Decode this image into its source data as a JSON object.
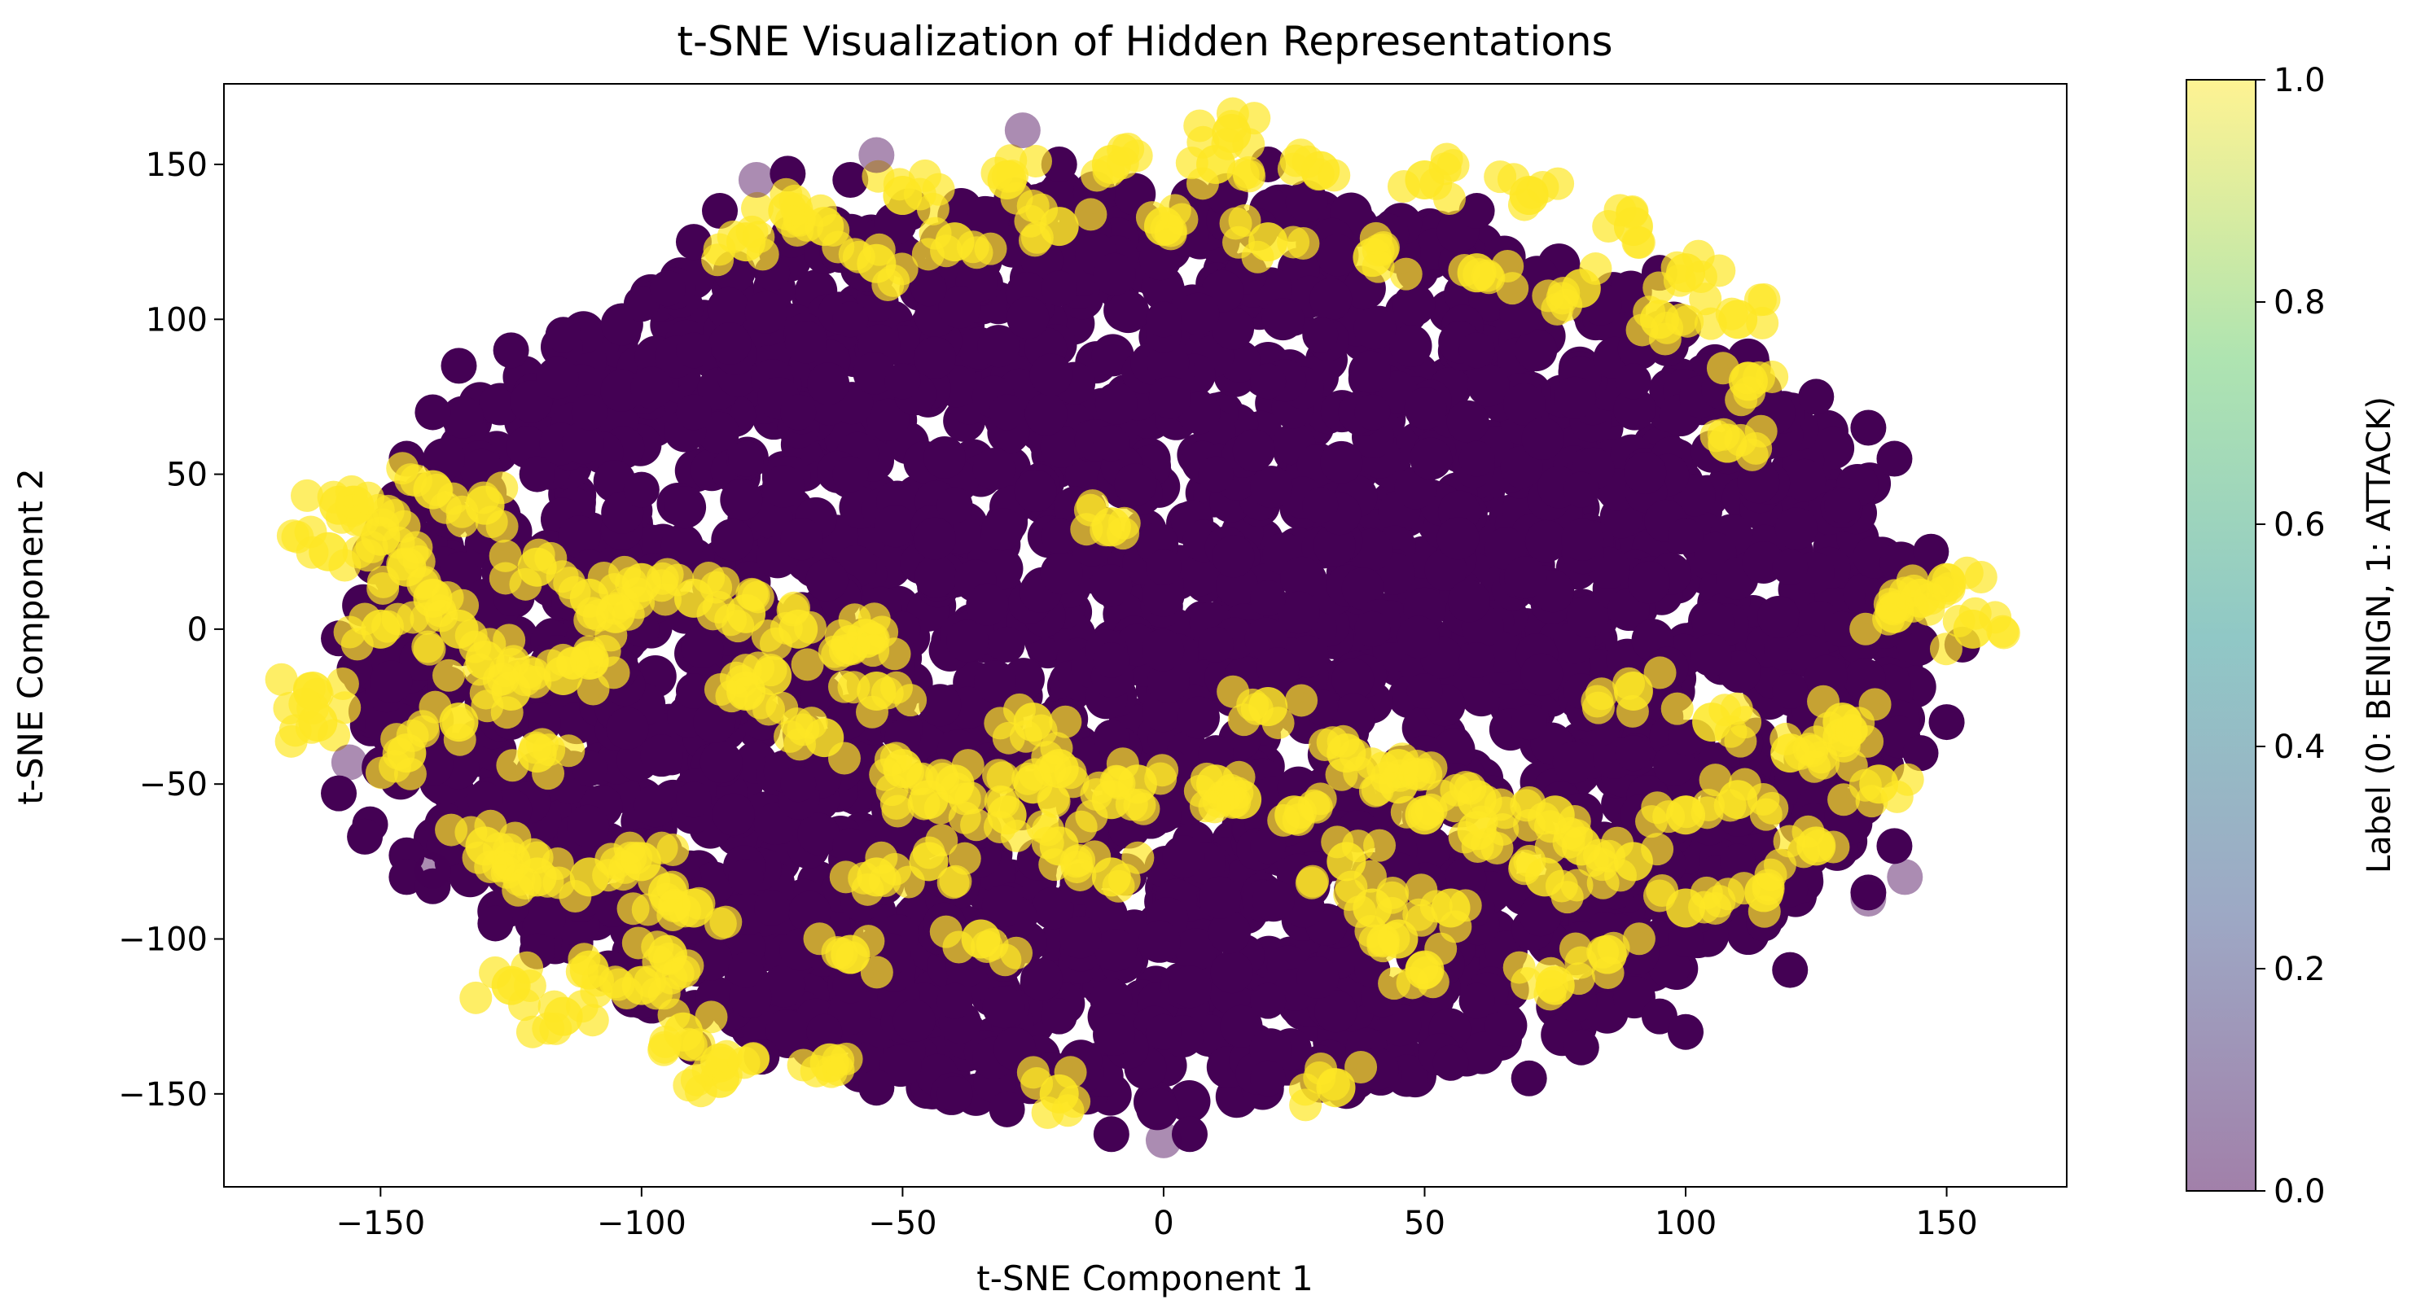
{
  "chart_data": {
    "type": "scatter",
    "title": "t-SNE Visualization of Hidden Representations",
    "xlabel": "t-SNE Component 1",
    "ylabel": "t-SNE Component 2",
    "xlim": [
      -180,
      173
    ],
    "ylim": [
      -180,
      176
    ],
    "xticks": [
      -150,
      -100,
      -50,
      0,
      50,
      100,
      150
    ],
    "yticks": [
      -150,
      -100,
      -50,
      0,
      50,
      100,
      150
    ],
    "xtick_labels": [
      "−150",
      "−100",
      "−50",
      "0",
      "50",
      "100",
      "150"
    ],
    "ytick_labels": [
      "−150",
      "−100",
      "−50",
      "0",
      "50",
      "100",
      "150"
    ],
    "grid": false,
    "legend": "none",
    "colormap": "viridis",
    "colors": {
      "benign": "#440154",
      "attack": "#fde725"
    },
    "colorbar": {
      "label": "Label (0: BENIGN, 1: ATTACK)",
      "range": [
        0.0,
        1.0
      ],
      "ticks": [
        0.0,
        0.2,
        0.4,
        0.6,
        0.8,
        1.0
      ],
      "tick_labels": [
        "0.0",
        "0.2",
        "0.4",
        "0.6",
        "0.8",
        "1.0"
      ],
      "colors": [
        "#440154",
        "#3b528b",
        "#21918c",
        "#5ec962",
        "#fde725"
      ]
    },
    "series": [
      {
        "label": 0,
        "color": "#440154",
        "points": [
          [
            -158,
            -3
          ],
          [
            -155,
            -13
          ],
          [
            -158,
            -53
          ],
          [
            -152,
            -63
          ],
          [
            -153,
            -67
          ],
          [
            -145,
            -73
          ],
          [
            -145,
            -80
          ],
          [
            -140,
            -83
          ],
          [
            -128,
            -95
          ],
          [
            -120,
            -104
          ],
          [
            -100,
            -120
          ],
          [
            -90,
            -135
          ],
          [
            -77,
            -138
          ],
          [
            -75,
            -90
          ],
          [
            -65,
            -130
          ],
          [
            -55,
            -148
          ],
          [
            -40,
            -150
          ],
          [
            -30,
            -155
          ],
          [
            -10,
            -163
          ],
          [
            5,
            -163
          ],
          [
            20,
            -145
          ],
          [
            30,
            -140
          ],
          [
            55,
            -140
          ],
          [
            70,
            -145
          ],
          [
            95,
            -125
          ],
          [
            115,
            -95
          ],
          [
            120,
            -84
          ],
          [
            135,
            -85
          ],
          [
            140,
            -70
          ],
          [
            145,
            -40
          ],
          [
            150,
            -30
          ],
          [
            153,
            -5
          ],
          [
            148,
            15
          ],
          [
            147,
            25
          ],
          [
            140,
            55
          ],
          [
            135,
            65
          ],
          [
            125,
            75
          ],
          [
            95,
            115
          ],
          [
            60,
            135
          ],
          [
            20,
            150
          ],
          [
            -20,
            150
          ],
          [
            -60,
            145
          ],
          [
            -72,
            147
          ],
          [
            -85,
            135
          ],
          [
            -90,
            125
          ],
          [
            -100,
            105
          ],
          [
            -115,
            95
          ],
          [
            -125,
            90
          ],
          [
            -135,
            85
          ],
          [
            -140,
            70
          ],
          [
            -145,
            55
          ],
          [
            -140,
            40
          ],
          [
            -90,
            90
          ],
          [
            -60,
            100
          ],
          [
            -20,
            110
          ],
          [
            0,
            95
          ],
          [
            20,
            80
          ],
          [
            40,
            70
          ],
          [
            60,
            55
          ],
          [
            80,
            45
          ],
          [
            100,
            30
          ],
          [
            120,
            20
          ],
          [
            130,
            0
          ],
          [
            120,
            -20
          ],
          [
            100,
            -35
          ],
          [
            80,
            -20
          ],
          [
            60,
            -10
          ],
          [
            40,
            0
          ],
          [
            20,
            10
          ],
          [
            0,
            20
          ],
          [
            -20,
            30
          ],
          [
            -40,
            40
          ],
          [
            -60,
            50
          ],
          [
            -80,
            55
          ],
          [
            -100,
            45
          ],
          [
            -110,
            20
          ],
          [
            -100,
            0
          ],
          [
            -90,
            -20
          ],
          [
            -70,
            -10
          ],
          [
            -50,
            0
          ],
          [
            -30,
            -5
          ],
          [
            -10,
            -10
          ],
          [
            10,
            -5
          ],
          [
            30,
            -25
          ],
          [
            50,
            -40
          ],
          [
            70,
            -60
          ],
          [
            90,
            -80
          ],
          [
            110,
            -75
          ],
          [
            130,
            -60
          ],
          [
            120,
            -110
          ],
          [
            100,
            -130
          ],
          [
            80,
            -135
          ],
          [
            60,
            -120
          ],
          [
            40,
            -110
          ],
          [
            20,
            -120
          ],
          [
            0,
            -130
          ],
          [
            -20,
            -125
          ],
          [
            -40,
            -120
          ],
          [
            -60,
            -115
          ],
          [
            -80,
            -110
          ],
          [
            -100,
            -70
          ],
          [
            -80,
            -80
          ],
          [
            -60,
            -70
          ],
          [
            -40,
            -80
          ],
          [
            -20,
            -70
          ],
          [
            0,
            -60
          ],
          [
            20,
            -70
          ],
          [
            40,
            -80
          ],
          [
            60,
            -90
          ],
          [
            80,
            -100
          ],
          [
            100,
            -100
          ],
          [
            110,
            -50
          ],
          [
            90,
            -40
          ],
          [
            70,
            -30
          ],
          [
            50,
            -20
          ],
          [
            30,
            40
          ],
          [
            10,
            50
          ],
          [
            -10,
            60
          ],
          [
            -30,
            70
          ],
          [
            -50,
            80
          ],
          [
            -70,
            70
          ],
          [
            -90,
            70
          ],
          [
            -110,
            70
          ],
          [
            -120,
            50
          ],
          [
            -130,
            30
          ],
          [
            -125,
            10
          ],
          [
            -125,
            -30
          ],
          [
            -130,
            -55
          ],
          [
            -110,
            -45
          ],
          [
            -90,
            -55
          ],
          [
            -70,
            -50
          ],
          [
            -50,
            -35
          ],
          [
            -30,
            -40
          ],
          [
            -10,
            -35
          ],
          [
            10,
            -40
          ],
          [
            30,
            -55
          ],
          [
            0,
            100
          ],
          [
            30,
            95
          ],
          [
            60,
            90
          ],
          [
            90,
            80
          ],
          [
            110,
            60
          ],
          [
            130,
            40
          ],
          [
            -45,
            110
          ],
          [
            -75,
            115
          ],
          [
            -95,
            110
          ]
        ]
      },
      {
        "label": 1,
        "color": "#fde725",
        "points": [
          [
            -72,
            135
          ],
          [
            -65,
            130
          ],
          [
            -50,
            140
          ],
          [
            -30,
            145
          ],
          [
            -10,
            150
          ],
          [
            10,
            150
          ],
          [
            30,
            148
          ],
          [
            50,
            145
          ],
          [
            70,
            140
          ],
          [
            90,
            130
          ],
          [
            100,
            115
          ],
          [
            110,
            100
          ],
          [
            112,
            80
          ],
          [
            108,
            60
          ],
          [
            -40,
            125
          ],
          [
            -20,
            130
          ],
          [
            0,
            130
          ],
          [
            20,
            125
          ],
          [
            40,
            120
          ],
          [
            60,
            115
          ],
          [
            80,
            110
          ],
          [
            95,
            100
          ],
          [
            -55,
            118
          ],
          [
            13,
            160
          ],
          [
            -80,
            125
          ],
          [
            -155,
            40
          ],
          [
            -150,
            30
          ],
          [
            -145,
            20
          ],
          [
            -140,
            10
          ],
          [
            -135,
            0
          ],
          [
            -130,
            -10
          ],
          [
            -125,
            -20
          ],
          [
            -135,
            -30
          ],
          [
            -145,
            -40
          ],
          [
            -150,
            0
          ],
          [
            -160,
            25
          ],
          [
            -158,
            40
          ],
          [
            -163,
            -20
          ],
          [
            -162,
            -30
          ],
          [
            -140,
            45
          ],
          [
            -130,
            40
          ],
          [
            -120,
            20
          ],
          [
            -110,
            10
          ],
          [
            -115,
            -15
          ],
          [
            -120,
            -40
          ],
          [
            -130,
            -70
          ],
          [
            -125,
            -75
          ],
          [
            -120,
            -80
          ],
          [
            -110,
            -80
          ],
          [
            -100,
            -75
          ],
          [
            -95,
            -85
          ],
          [
            -90,
            -90
          ],
          [
            -95,
            -105
          ],
          [
            -100,
            -115
          ],
          [
            -110,
            -110
          ],
          [
            -125,
            -115
          ],
          [
            -115,
            -125
          ],
          [
            -92,
            -130
          ],
          [
            -85,
            -140
          ],
          [
            -85,
            -145
          ],
          [
            -64,
            -140
          ],
          [
            -90,
            10
          ],
          [
            -80,
            5
          ],
          [
            -70,
            0
          ],
          [
            -60,
            -5
          ],
          [
            -75,
            -15
          ],
          [
            -110,
            -10
          ],
          [
            -105,
            5
          ],
          [
            -100,
            15
          ],
          [
            -55,
            -20
          ],
          [
            -50,
            -45
          ],
          [
            -45,
            -55
          ],
          [
            -40,
            -50
          ],
          [
            -30,
            -60
          ],
          [
            -25,
            -50
          ],
          [
            -20,
            -45
          ],
          [
            -10,
            -55
          ],
          [
            -55,
            -80
          ],
          [
            -45,
            -75
          ],
          [
            -20,
            -70
          ],
          [
            -10,
            -80
          ],
          [
            -60,
            -105
          ],
          [
            -35,
            -100
          ],
          [
            -25,
            -30
          ],
          [
            -5,
            -50
          ],
          [
            10,
            -50
          ],
          [
            20,
            -25
          ],
          [
            15,
            -55
          ],
          [
            25,
            -60
          ],
          [
            35,
            -75
          ],
          [
            40,
            -90
          ],
          [
            45,
            -100
          ],
          [
            50,
            -110
          ],
          [
            55,
            -90
          ],
          [
            60,
            -65
          ],
          [
            75,
            -60
          ],
          [
            80,
            -70
          ],
          [
            90,
            -75
          ],
          [
            100,
            -60
          ],
          [
            110,
            -55
          ],
          [
            120,
            -40
          ],
          [
            130,
            -35
          ],
          [
            125,
            -70
          ],
          [
            115,
            -85
          ],
          [
            100,
            -90
          ],
          [
            85,
            -105
          ],
          [
            75,
            -115
          ],
          [
            73,
            -80
          ],
          [
            60,
            -55
          ],
          [
            45,
            -45
          ],
          [
            35,
            -40
          ],
          [
            45,
            -50
          ],
          [
            50,
            -60
          ],
          [
            90,
            -20
          ],
          [
            105,
            -30
          ],
          [
            130,
            -30
          ],
          [
            140,
            5
          ],
          [
            145,
            10
          ],
          [
            155,
            0
          ],
          [
            150,
            15
          ],
          [
            137,
            -50
          ],
          [
            -80,
            -20
          ],
          [
            -65,
            -35
          ],
          [
            -57,
            -3
          ],
          [
            33,
            -148
          ],
          [
            -10,
            33
          ],
          [
            -20,
            -150
          ]
        ]
      },
      {
        "label": 0,
        "color": "#440154",
        "opacity": 0.45,
        "points": [
          [
            -27,
            161
          ],
          [
            -55,
            153
          ],
          [
            -78,
            145
          ],
          [
            -156,
            -43
          ],
          [
            -140,
            -78
          ],
          [
            0,
            -165
          ],
          [
            142,
            -80
          ],
          [
            135,
            -87
          ]
        ]
      }
    ]
  }
}
